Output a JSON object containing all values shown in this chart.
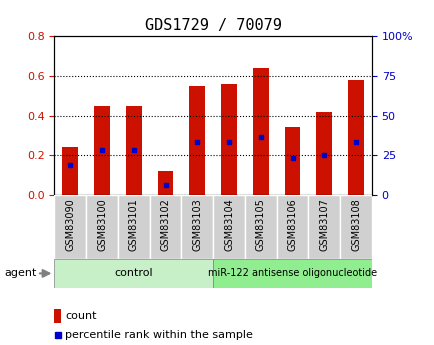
{
  "title": "GDS1729 / 70079",
  "samples": [
    "GSM83090",
    "GSM83100",
    "GSM83101",
    "GSM83102",
    "GSM83103",
    "GSM83104",
    "GSM83105",
    "GSM83106",
    "GSM83107",
    "GSM83108"
  ],
  "count_values": [
    0.24,
    0.45,
    0.45,
    0.12,
    0.55,
    0.56,
    0.64,
    0.34,
    0.42,
    0.58
  ],
  "percentile_values": [
    0.15,
    0.225,
    0.225,
    0.05,
    0.265,
    0.265,
    0.29,
    0.185,
    0.2,
    0.265
  ],
  "left_ylim": [
    0,
    0.8
  ],
  "right_ylim": [
    0,
    100
  ],
  "left_yticks": [
    0,
    0.2,
    0.4,
    0.6,
    0.8
  ],
  "right_yticks": [
    0,
    25,
    50,
    75,
    100
  ],
  "right_yticklabels": [
    "0",
    "25",
    "50",
    "75",
    "100%"
  ],
  "bar_color": "#cc1100",
  "percentile_color": "#0000cc",
  "bar_width": 0.5,
  "control_label": "control",
  "control_color": "#c8f0c8",
  "mir_label": "miR-122 antisense oligonucleotide",
  "mir_color": "#90ee90",
  "agent_label": "agent",
  "left_axis_color": "#cc1100",
  "right_axis_color": "#0000cc",
  "tick_label_bg": "#d0d0d0",
  "legend_count_label": "count",
  "legend_percentile_label": "percentile rank within the sample",
  "title_fontsize": 11,
  "tick_fontsize": 7,
  "group_fontsize": 8,
  "legend_fontsize": 8
}
